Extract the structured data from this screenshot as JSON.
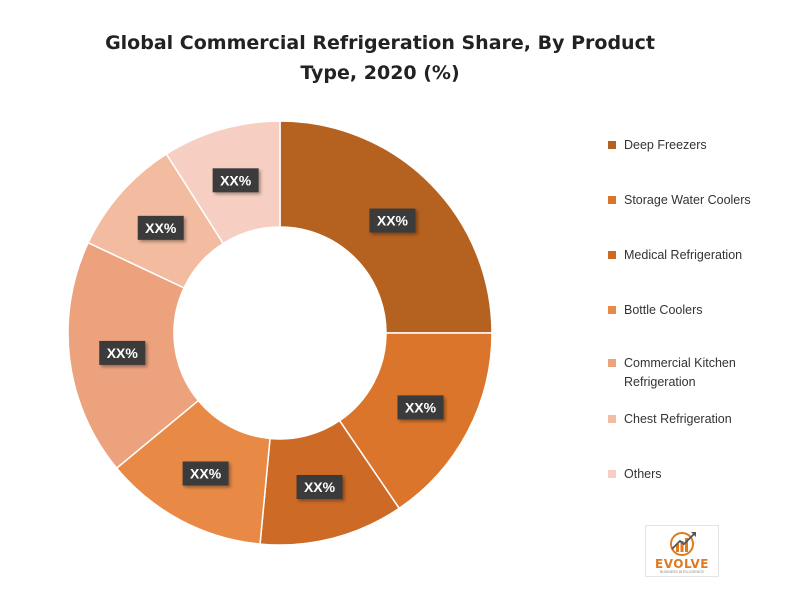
{
  "chart_data": {
    "type": "pie",
    "variant": "donut",
    "title": "Global  Commercial Refrigeration Share, By Product Type, 2020 (%)",
    "series": [
      {
        "name": "Deep Freezers",
        "value": 25,
        "label": "XX%",
        "color": "#b5611f"
      },
      {
        "name": "Storage Water Coolers",
        "value": 15.5,
        "label": "XX%",
        "color": "#db752b"
      },
      {
        "name": "Medical Refrigeration",
        "value": 11,
        "label": "XX%",
        "color": "#cd6a26"
      },
      {
        "name": "Bottle Coolers",
        "value": 12.5,
        "label": "XX%",
        "color": "#e88a46"
      },
      {
        "name": "Commercial Kitchen Refrigeration",
        "value": 18,
        "label": "XX%",
        "color": "#eda27e"
      },
      {
        "name": "Chest Refrigeration",
        "value": 9,
        "label": "XX%",
        "color": "#f3bca0"
      },
      {
        "name": "Others",
        "value": 9,
        "label": "XX%",
        "color": "#f7cfc2"
      }
    ],
    "legend_position": "right"
  },
  "logo": {
    "brand": "EVOLVE",
    "tagline": "BUSINESS INTELLIGENCE"
  }
}
